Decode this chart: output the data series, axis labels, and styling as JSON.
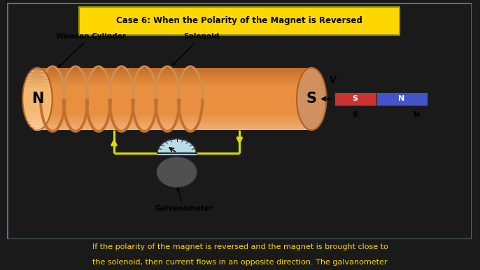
{
  "title": "Case 6: When the Polarity of the Magnet is Reversed",
  "title_bg": "#FFD700",
  "title_color": "#000000",
  "outer_bg": "#1a1a1a",
  "panel_bg": "#cde0e0",
  "panel_border": "#5a7a7a",
  "bottom_bg": "#7a1008",
  "bottom_line1": "If the ",
  "bottom_line1_parts": [
    [
      "If the ",
      "yellow",
      false
    ],
    [
      "polarity of the magnet is reversed",
      "yellow",
      true
    ],
    [
      " and the ",
      "yellow",
      false
    ],
    [
      "magnet is brought close to",
      "yellow",
      true
    ]
  ],
  "bottom_line2_parts": [
    [
      "the solenoid, then ",
      "yellow",
      false
    ],
    [
      "current flows in an opposite direction",
      "yellow",
      true
    ],
    [
      ". The galvanometer",
      "yellow",
      false
    ]
  ],
  "cylinder_color_main": "#E89040",
  "cylinder_color_light": "#F5B870",
  "cylinder_color_dark": "#B06020",
  "cylinder_color_shadow": "#904010",
  "coil_color_front": "#C07030",
  "coil_color_back": "#D09050",
  "wire_color": "#DDDD00",
  "wire_lw": 2.2,
  "label_wooden": "Wooden Cylinder",
  "label_solenoid": "Solenoid",
  "label_galvanometer": "Galvanometer",
  "label_N": "N",
  "label_S": "S",
  "label_V": "V",
  "magnet_red": "#CC3333",
  "magnet_blue": "#4455CC",
  "galv_body_color": "#505050",
  "galv_face_color": "#b8dce8",
  "galv_border_color": "#333333"
}
